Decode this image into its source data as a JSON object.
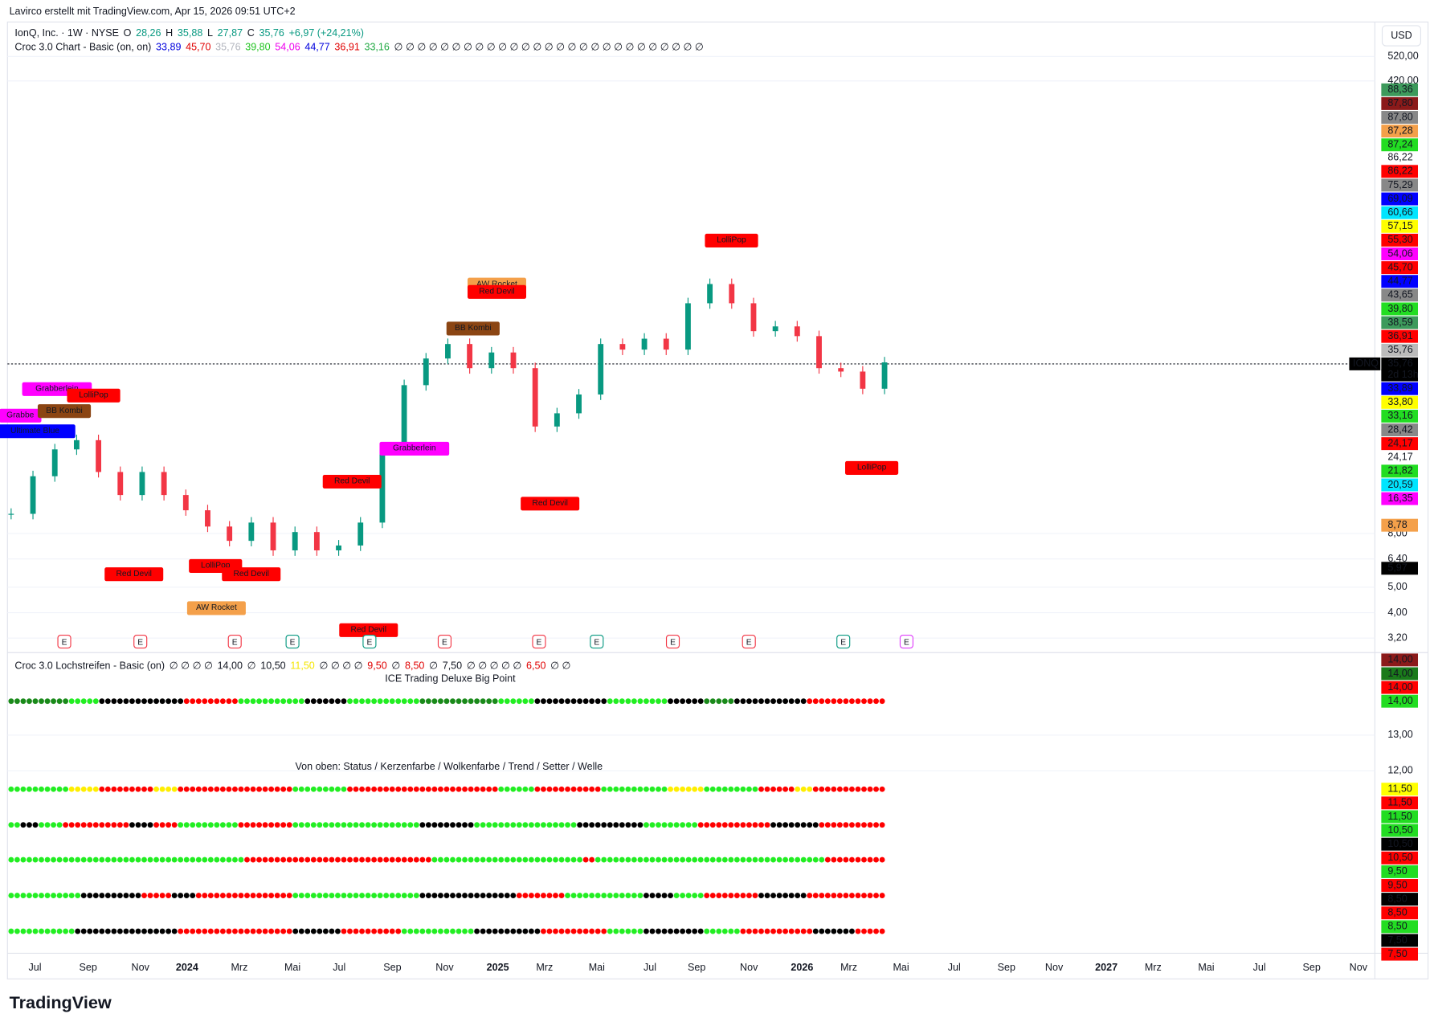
{
  "chart_data": {
    "type": "candlestick",
    "credit": "Lavirco erstellt mit TradingView.com, Apr 15, 2026 09:51 UTC+2",
    "currency": "USD",
    "symbol_tag": "IONQ",
    "countdown": "2d 13h",
    "logo": "TradingView",
    "legend_main": [
      {
        "text": "IonQ, Inc. · 1W · NYSE",
        "color": "#131722"
      },
      {
        "text": "O",
        "color": "#131722"
      },
      {
        "text": "28,26",
        "color": "#089981"
      },
      {
        "text": "H",
        "color": "#131722"
      },
      {
        "text": "35,88",
        "color": "#089981"
      },
      {
        "text": "L",
        "color": "#131722"
      },
      {
        "text": "27,87",
        "color": "#089981"
      },
      {
        "text": "C",
        "color": "#131722"
      },
      {
        "text": "35,76",
        "color": "#089981"
      },
      {
        "text": "+6,97 (+24,21%)",
        "color": "#089981"
      }
    ],
    "legend_croc": [
      {
        "text": "Croc 3.0 Chart - Basic (on, on)",
        "color": "#131722"
      },
      {
        "text": "33,89",
        "color": "#0000dd"
      },
      {
        "text": "45,70",
        "color": "#e00000"
      },
      {
        "text": "35,76",
        "color": "#b2b5be"
      },
      {
        "text": "39,80",
        "color": "#22c422"
      },
      {
        "text": "54,06",
        "color": "#ee00ee"
      },
      {
        "text": "44,77",
        "color": "#0000dd"
      },
      {
        "text": "36,91",
        "color": "#e00000"
      },
      {
        "text": "33,16",
        "color": "#22aa44"
      },
      {
        "text": "∅ ∅ ∅ ∅ ∅ ∅ ∅ ∅ ∅ ∅ ∅ ∅ ∅ ∅ ∅ ∅ ∅ ∅ ∅ ∅ ∅ ∅ ∅ ∅ ∅ ∅ ∅",
        "color": "#131722"
      }
    ],
    "legend_loch": [
      {
        "text": "Croc 3.0 Lochstreifen - Basic (on)",
        "color": "#131722"
      },
      {
        "text": "∅ ∅ ∅ ∅",
        "color": "#131722"
      },
      {
        "text": "14,00",
        "color": "#131722"
      },
      {
        "text": "∅",
        "color": "#131722"
      },
      {
        "text": "10,50",
        "color": "#131722"
      },
      {
        "text": "11,50",
        "color": "#f5e600"
      },
      {
        "text": "∅ ∅ ∅ ∅",
        "color": "#131722"
      },
      {
        "text": "9,50",
        "color": "#e00000"
      },
      {
        "text": "∅",
        "color": "#131722"
      },
      {
        "text": "8,50",
        "color": "#e00000"
      },
      {
        "text": "∅",
        "color": "#131722"
      },
      {
        "text": "7,50",
        "color": "#131722"
      },
      {
        "text": "∅ ∅ ∅ ∅ ∅",
        "color": "#131722"
      },
      {
        "text": "6,50",
        "color": "#e00000"
      },
      {
        "text": "∅ ∅",
        "color": "#131722"
      }
    ],
    "ice_title": "ICE Trading Deluxe Big Point",
    "rows_title": "Von oben: Status / Kerzenfarbe / Wolkenfarbe / Trend / Setter / Welle",
    "log_scale": true,
    "ylim": [
      3.2,
      520
    ],
    "yticks": [
      {
        "value": 520,
        "label": "520,00"
      },
      {
        "value": 420,
        "label": "420,00"
      },
      {
        "value": 8,
        "label": "8,00"
      },
      {
        "value": 6.4,
        "label": "6,40"
      },
      {
        "value": 5,
        "label": "5,00"
      },
      {
        "value": 4,
        "label": "4,00"
      },
      {
        "value": 3.2,
        "label": "3,20"
      }
    ],
    "lower_ticks": [
      "13,00",
      "12,00"
    ],
    "price_badges": [
      {
        "text": "88,36",
        "bg": "#3d9a5b"
      },
      {
        "text": "87,80",
        "bg": "#8b1a1a"
      },
      {
        "text": "87,80",
        "bg": "#888888"
      },
      {
        "text": "87,28",
        "bg": "#f4a04a"
      },
      {
        "text": "87,24",
        "bg": "#22dd22"
      },
      {
        "text": "86,22",
        "bg": "none"
      },
      {
        "text": "86,22",
        "bg": "#ff0000"
      },
      {
        "text": "75,29",
        "bg": "#888888"
      },
      {
        "text": "69,09",
        "bg": "#0000ff"
      },
      {
        "text": "60,66",
        "bg": "#00e5ff"
      },
      {
        "text": "57,15",
        "bg": "#ffff00"
      },
      {
        "text": "55,30",
        "bg": "#ff0000"
      },
      {
        "text": "54,06",
        "bg": "#ff00ff"
      },
      {
        "text": "45,70",
        "bg": "#ff0000"
      },
      {
        "text": "44,77",
        "bg": "#0000ff"
      },
      {
        "text": "43,65",
        "bg": "#888888"
      },
      {
        "text": "39,80",
        "bg": "#22dd22"
      },
      {
        "text": "38,59",
        "bg": "#3d9a5b"
      },
      {
        "text": "36,91",
        "bg": "#ff0000"
      },
      {
        "text": "35,76",
        "bg": "#bbbbbb"
      },
      {
        "text": "35,76",
        "bg": "#000000"
      },
      {
        "text": "33,89",
        "bg": "#0000ff"
      },
      {
        "text": "33,80",
        "bg": "#ffff00"
      },
      {
        "text": "33,16",
        "bg": "#22dd22"
      },
      {
        "text": "28,42",
        "bg": "#888888"
      },
      {
        "text": "24,17",
        "bg": "#ff0000"
      },
      {
        "text": "24,17",
        "bg": "none"
      },
      {
        "text": "21,82",
        "bg": "#22dd22"
      },
      {
        "text": "20,59",
        "bg": "#00e5ff"
      },
      {
        "text": "16,35",
        "bg": "#ff00ff"
      },
      {
        "text": "8,78",
        "bg": "#f4a04a"
      },
      {
        "text": "5,97",
        "bg": "#000000"
      },
      {
        "text": "14,00",
        "bg": "#8b1a1a"
      },
      {
        "text": "14,00",
        "bg": "#1a7a1a"
      },
      {
        "text": "14,00",
        "bg": "#ff0000"
      },
      {
        "text": "14,00",
        "bg": "#22dd22"
      },
      {
        "text": "11,50",
        "bg": "#ffff00"
      },
      {
        "text": "11,50",
        "bg": "#ff0000"
      },
      {
        "text": "11,50",
        "bg": "#22dd22"
      },
      {
        "text": "10,50",
        "bg": "#22dd22"
      },
      {
        "text": "10,50",
        "bg": "#000000"
      },
      {
        "text": "10,50",
        "bg": "#ff0000"
      },
      {
        "text": "9,50",
        "bg": "#22dd22"
      },
      {
        "text": "9,50",
        "bg": "#ff0000"
      },
      {
        "text": "8,50",
        "bg": "#000000"
      },
      {
        "text": "8,50",
        "bg": "#ff0000"
      },
      {
        "text": "8,50",
        "bg": "#22dd22"
      },
      {
        "text": "7,50",
        "bg": "#000000"
      },
      {
        "text": "7,50",
        "bg": "#ff0000"
      }
    ],
    "signals": [
      {
        "text": "Grabbe",
        "bg": "#ff00ff"
      },
      {
        "text": "Grabberlein",
        "bg": "#ff00ff"
      },
      {
        "text": "BB Kombi",
        "bg": "#8b4513"
      },
      {
        "text": "LolliPop",
        "bg": "#ff0000"
      },
      {
        "text": "Ultimate Blue",
        "bg": "#0000ff"
      },
      {
        "text": "Red Devil",
        "bg": "#ff0000"
      },
      {
        "text": "LolliPop",
        "bg": "#ff0000"
      },
      {
        "text": "Red Devil",
        "bg": "#ff0000"
      },
      {
        "text": "AW Rocket",
        "bg": "#f4a04a"
      },
      {
        "text": "Red Devil",
        "bg": "#ff0000"
      },
      {
        "text": "Red Devil",
        "bg": "#ff0000"
      },
      {
        "text": "Grabberlein",
        "bg": "#ff00ff"
      },
      {
        "text": "AW Rocket",
        "bg": "#f4a04a"
      },
      {
        "text": "Red Devil",
        "bg": "#ff0000"
      },
      {
        "text": "BB Kombi",
        "bg": "#8b4513"
      },
      {
        "text": "Red Devil",
        "bg": "#ff0000"
      },
      {
        "text": "LolliPop",
        "bg": "#ff0000"
      },
      {
        "text": "LolliPop",
        "bg": "#ff0000"
      }
    ],
    "earnings_marker": "E",
    "time_labels": [
      "Jul",
      "Sep",
      "Nov",
      "2024",
      "Mrz",
      "Mai",
      "Jul",
      "Sep",
      "Nov",
      "2025",
      "Mrz",
      "Mai",
      "Jul",
      "Sep",
      "Nov",
      "2026",
      "Mrz",
      "Mai",
      "Jul",
      "Sep",
      "Nov",
      "2027",
      "Mrz",
      "Mai",
      "Jul",
      "Sep",
      "Nov"
    ],
    "up_color": "#089981",
    "down_color": "#f23645",
    "closes": [
      9.5,
      13.2,
      16.7,
      18.1,
      13.7,
      11.2,
      13.7,
      11.2,
      9.8,
      8.5,
      7.5,
      8.8,
      6.9,
      8.1,
      6.9,
      7.2,
      8.8,
      16.7,
      29.3,
      37,
      42,
      34,
      39,
      34,
      20.4,
      22.9,
      27,
      42,
      40,
      44,
      40,
      60,
      71,
      60,
      47,
      49,
      45,
      34,
      33,
      28.4,
      35.76
    ]
  }
}
